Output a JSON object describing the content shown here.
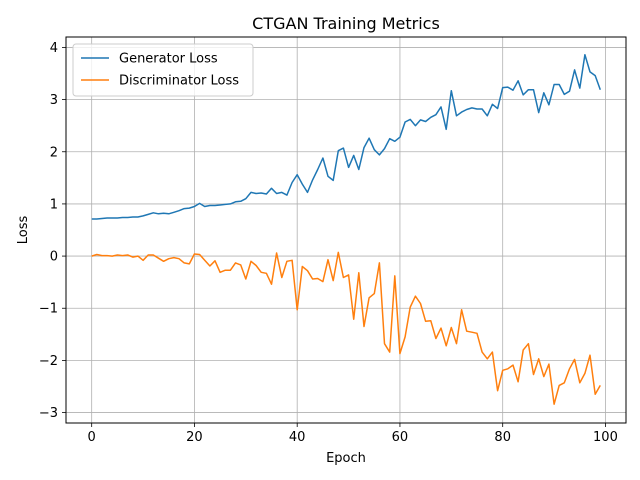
{
  "chart_data": {
    "type": "line",
    "title": "CTGAN Training Metrics",
    "xlabel": "Epoch",
    "ylabel": "Loss",
    "xlim": [
      -5,
      104
    ],
    "ylim": [
      -3.2,
      4.2
    ],
    "xticks": [
      0,
      20,
      40,
      60,
      80,
      100
    ],
    "yticks": [
      -3,
      -2,
      -1,
      0,
      1,
      2,
      3,
      4
    ],
    "grid": true,
    "legend_position": "upper-left",
    "series": [
      {
        "name": "Generator Loss",
        "color": "#1f77b4",
        "x": [
          0,
          1,
          2,
          3,
          4,
          5,
          6,
          7,
          8,
          9,
          10,
          11,
          12,
          13,
          14,
          15,
          16,
          17,
          18,
          19,
          20,
          21,
          22,
          23,
          24,
          25,
          26,
          27,
          28,
          29,
          30,
          31,
          32,
          33,
          34,
          35,
          36,
          37,
          38,
          39,
          40,
          41,
          42,
          43,
          44,
          45,
          46,
          47,
          48,
          49,
          50,
          51,
          52,
          53,
          54,
          55,
          56,
          57,
          58,
          59,
          60,
          61,
          62,
          63,
          64,
          65,
          66,
          67,
          68,
          69,
          70,
          71,
          72,
          73,
          74,
          75,
          76,
          77,
          78,
          79,
          80,
          81,
          82,
          83,
          84,
          85,
          86,
          87,
          88,
          89,
          90,
          91,
          92,
          93,
          94,
          95,
          96,
          97,
          98,
          99
        ],
        "values": [
          0.71,
          0.71,
          0.72,
          0.73,
          0.73,
          0.73,
          0.74,
          0.74,
          0.75,
          0.75,
          0.77,
          0.8,
          0.83,
          0.81,
          0.82,
          0.81,
          0.84,
          0.87,
          0.91,
          0.92,
          0.95,
          1.01,
          0.95,
          0.97,
          0.97,
          0.98,
          0.99,
          1.0,
          1.04,
          1.05,
          1.1,
          1.22,
          1.2,
          1.21,
          1.19,
          1.3,
          1.2,
          1.22,
          1.17,
          1.41,
          1.56,
          1.38,
          1.22,
          1.46,
          1.66,
          1.88,
          1.53,
          1.45,
          2.02,
          2.07,
          1.7,
          1.93,
          1.66,
          2.08,
          2.26,
          2.04,
          1.94,
          2.06,
          2.25,
          2.2,
          2.28,
          2.57,
          2.62,
          2.5,
          2.61,
          2.58,
          2.66,
          2.71,
          2.86,
          2.43,
          3.17,
          2.69,
          2.76,
          2.81,
          2.84,
          2.82,
          2.82,
          2.69,
          2.91,
          2.83,
          3.23,
          3.24,
          3.18,
          3.36,
          3.09,
          3.19,
          3.19,
          2.75,
          3.13,
          2.9,
          3.29,
          3.29,
          3.1,
          3.16,
          3.57,
          3.22,
          3.86,
          3.53,
          3.46,
          3.19
        ]
      },
      {
        "name": "Discriminator Loss",
        "color": "#ff7f0e",
        "x": [
          0,
          1,
          2,
          3,
          4,
          5,
          6,
          7,
          8,
          9,
          10,
          11,
          12,
          13,
          14,
          15,
          16,
          17,
          18,
          19,
          20,
          21,
          22,
          23,
          24,
          25,
          26,
          27,
          28,
          29,
          30,
          31,
          32,
          33,
          34,
          35,
          36,
          37,
          38,
          39,
          40,
          41,
          42,
          43,
          44,
          45,
          46,
          47,
          48,
          49,
          50,
          51,
          52,
          53,
          54,
          55,
          56,
          57,
          58,
          59,
          60,
          61,
          62,
          63,
          64,
          65,
          66,
          67,
          68,
          69,
          70,
          71,
          72,
          73,
          74,
          75,
          76,
          77,
          78,
          79,
          80,
          81,
          82,
          83,
          84,
          85,
          86,
          87,
          88,
          89,
          90,
          91,
          92,
          93,
          94,
          95,
          96,
          97,
          98,
          99
        ],
        "values": [
          0.0,
          0.03,
          0.01,
          0.01,
          0.0,
          0.02,
          0.01,
          0.02,
          -0.02,
          0.0,
          -0.08,
          0.02,
          0.02,
          -0.04,
          -0.1,
          -0.05,
          -0.03,
          -0.05,
          -0.13,
          -0.15,
          0.04,
          0.03,
          -0.08,
          -0.19,
          -0.09,
          -0.31,
          -0.27,
          -0.27,
          -0.13,
          -0.17,
          -0.44,
          -0.1,
          -0.18,
          -0.31,
          -0.33,
          -0.54,
          0.06,
          -0.41,
          -0.1,
          -0.08,
          -1.03,
          -0.2,
          -0.28,
          -0.44,
          -0.43,
          -0.49,
          -0.07,
          -0.47,
          0.07,
          -0.41,
          -0.36,
          -1.21,
          -0.32,
          -1.35,
          -0.8,
          -0.72,
          -0.13,
          -1.68,
          -1.84,
          -0.38,
          -1.87,
          -1.55,
          -0.98,
          -0.77,
          -0.91,
          -1.25,
          -1.24,
          -1.58,
          -1.38,
          -1.72,
          -1.37,
          -1.68,
          -1.03,
          -1.44,
          -1.46,
          -1.48,
          -1.84,
          -1.97,
          -1.84,
          -2.58,
          -2.19,
          -2.16,
          -2.09,
          -2.41,
          -1.8,
          -1.68,
          -2.27,
          -1.97,
          -2.31,
          -2.07,
          -2.84,
          -2.48,
          -2.43,
          -2.16,
          -1.98,
          -2.43,
          -2.25,
          -1.9,
          -2.65,
          -2.48
        ]
      }
    ]
  }
}
